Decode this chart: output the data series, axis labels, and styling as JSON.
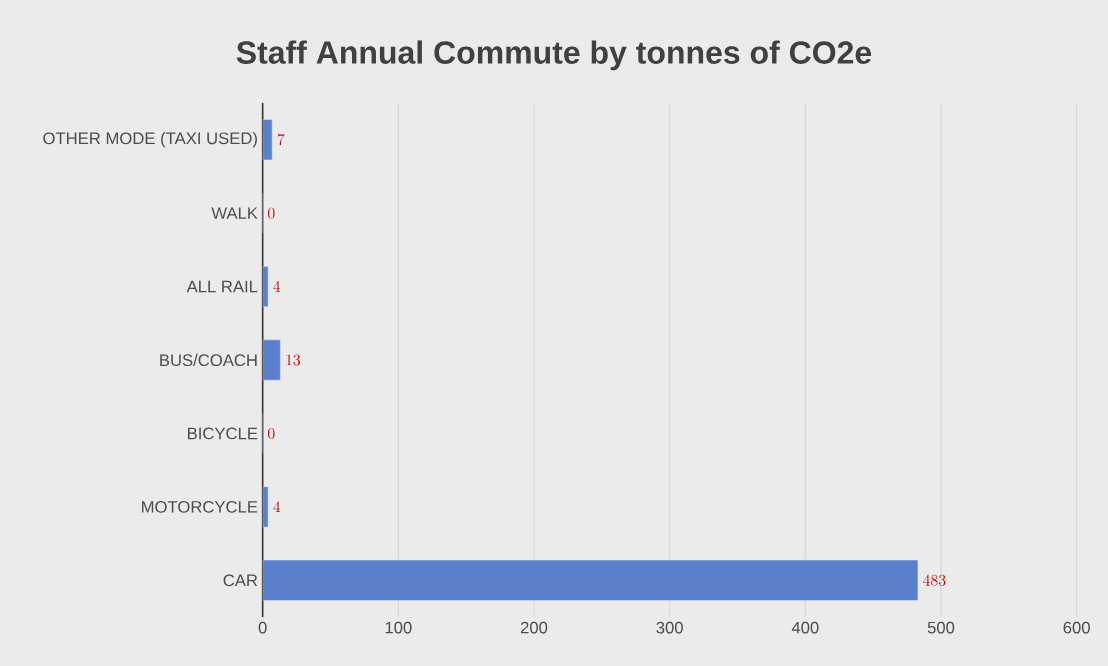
{
  "chart_data": {
    "type": "bar",
    "orientation": "horizontal",
    "title": "Staff Annual Commute by tonnes of CO2e",
    "categories": [
      "OTHER MODE (TAXI USED)",
      "WALK",
      "ALL RAIL",
      "BUS/COACH",
      "BICYCLE",
      "MOTORCYCLE",
      "CAR"
    ],
    "values": [
      7,
      0,
      4,
      13,
      0,
      4,
      483
    ],
    "color": "#5a7fcb",
    "xlim": [
      0,
      600
    ],
    "xticks": [
      0,
      100,
      200,
      300,
      400,
      500,
      600
    ],
    "grid": "x",
    "data_labels": true
  }
}
